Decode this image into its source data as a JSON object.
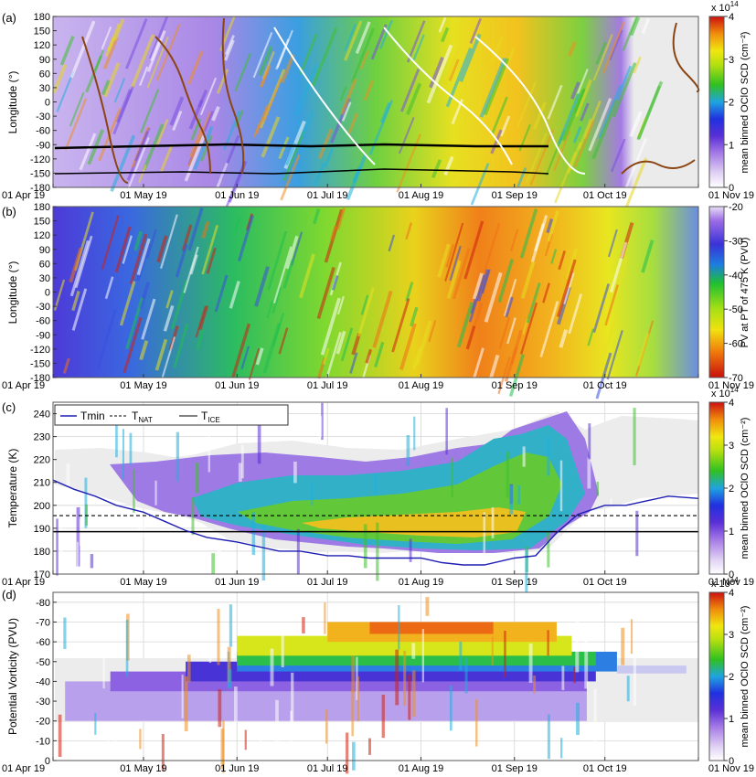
{
  "x_ticks": [
    "01 Apr 19",
    "01 May 19",
    "01 Jun 19",
    "01 Jul 19",
    "01 Aug 19",
    "01 Sep 19",
    "01 Oct 19",
    "01 Nov 19"
  ],
  "colors": {
    "ice_line": "#000000",
    "nat_line": "#000000",
    "tmin_line": "#1f1fb4",
    "contour_brown": "#8b4513",
    "contour_white": "#ffffff",
    "no_data_grey": "#e8e8e8"
  },
  "chart_data": [
    {
      "panel": "(a)",
      "type": "heatmap",
      "ylabel": "Longitude (°)",
      "yticks": [
        180,
        150,
        120,
        90,
        60,
        30,
        0,
        -30,
        -60,
        -90,
        -120,
        -150,
        -180
      ],
      "ylim": [
        -180,
        180
      ],
      "xlim": [
        "2019-04-01",
        "2019-11-01"
      ],
      "colorbar": {
        "label": "mean binned OClO SCD (cm⁻²)",
        "range": [
          0,
          4
        ],
        "ticks": [
          0,
          1,
          2,
          3,
          4
        ],
        "exponent": "x 10",
        "exponent_power": "14",
        "colormap": "white-purple-blue-green-yellow-red"
      },
      "overlays": [
        "brown contour",
        "white contour",
        "black contour"
      ],
      "description_values": {
        "peak_period": [
          "2019-08-01",
          "2019-09-20"
        ],
        "peak_value": 3.3
      }
    },
    {
      "panel": "(b)",
      "type": "heatmap",
      "ylabel": "Longitude (°)",
      "yticks": [
        180,
        150,
        120,
        90,
        60,
        30,
        0,
        -30,
        -60,
        -90,
        -120,
        -150,
        -180
      ],
      "ylim": [
        -180,
        180
      ],
      "xlim": [
        "2019-04-01",
        "2019-11-01"
      ],
      "colorbar": {
        "label": "PV at PT of 475 K (PVU)",
        "range": [
          -70,
          -20
        ],
        "ticks": [
          -20,
          -30,
          -40,
          -50,
          -60,
          -70
        ],
        "colormap": "purple-blue-green-yellow-red"
      }
    },
    {
      "panel": "(c)",
      "type": "heatmap",
      "ylabel": "Temperature (K)",
      "yticks": [
        240,
        230,
        220,
        210,
        200,
        190,
        180,
        170
      ],
      "ylim": [
        170,
        245
      ],
      "xlim": [
        "2019-04-01",
        "2019-11-01"
      ],
      "grid": true,
      "colorbar": {
        "label": "mean binned OClO SCD (cm⁻²)",
        "range": [
          0,
          4
        ],
        "ticks": [
          0,
          1,
          2,
          3,
          4
        ],
        "exponent": "x 10",
        "exponent_power": "14"
      },
      "legend": {
        "placement": "top-left",
        "entries": [
          {
            "label": "Tmin",
            "style": "solid-blue"
          },
          {
            "label": "T",
            "sub": "NAT",
            "style": "dashed-black"
          },
          {
            "label": "T",
            "sub": "ICE",
            "style": "solid-black"
          }
        ]
      },
      "T_NAT": 195.5,
      "T_ICE": 188.5,
      "tmin_series": {
        "x": [
          "2019-04-01",
          "2019-04-08",
          "2019-04-15",
          "2019-04-22",
          "2019-05-01",
          "2019-05-08",
          "2019-05-15",
          "2019-05-22",
          "2019-06-01",
          "2019-06-08",
          "2019-06-15",
          "2019-06-22",
          "2019-07-01",
          "2019-07-08",
          "2019-07-15",
          "2019-07-22",
          "2019-08-01",
          "2019-08-08",
          "2019-08-15",
          "2019-08-22",
          "2019-09-01",
          "2019-09-08",
          "2019-09-15",
          "2019-09-22",
          "2019-10-01",
          "2019-10-08",
          "2019-10-15",
          "2019-10-22",
          "2019-11-01"
        ],
        "y": [
          211,
          207,
          204,
          200,
          197,
          193,
          189,
          186,
          184,
          182,
          180,
          180,
          178,
          178,
          177,
          177,
          177,
          175,
          174,
          174,
          177,
          178,
          188,
          196,
          200,
          200,
          202,
          204,
          203
        ]
      }
    },
    {
      "panel": "(d)",
      "type": "heatmap",
      "ylabel": "Potential Vorticity (PVU)",
      "yticks": [
        -80,
        -70,
        -60,
        -50,
        -40,
        -30,
        -20,
        -10,
        0
      ],
      "ylim": [
        -85,
        0
      ],
      "xlim": [
        "2019-04-01",
        "2019-11-01"
      ],
      "grid": true,
      "colorbar": {
        "label": "mean binned OClO SCD (cm⁻²)",
        "range": [
          0,
          4
        ],
        "ticks": [
          0,
          1,
          2,
          3,
          4
        ],
        "exponent": "x 10",
        "exponent_power": "14"
      }
    }
  ],
  "panel_labels": [
    "(a)",
    "(b)",
    "(c)",
    "(d)"
  ]
}
